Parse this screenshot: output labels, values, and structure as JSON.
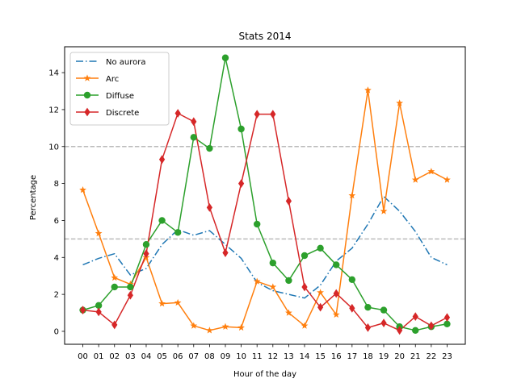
{
  "chart_data": {
    "type": "line",
    "title": "Stats 2014",
    "xlabel": "Hour of the day",
    "ylabel": "Percentage",
    "categories": [
      "00",
      "01",
      "02",
      "03",
      "04",
      "05",
      "06",
      "07",
      "08",
      "09",
      "10",
      "11",
      "12",
      "13",
      "14",
      "15",
      "16",
      "17",
      "18",
      "19",
      "20",
      "21",
      "22",
      "23"
    ],
    "ylim": [
      -0.7,
      15.4
    ],
    "yticks": [
      0,
      2,
      4,
      6,
      8,
      10,
      12,
      14
    ],
    "hlines": [
      {
        "y": 10,
        "style": "dashed",
        "color": "#bbbbbb"
      },
      {
        "y": 5,
        "style": "dashed",
        "color": "#bbbbbb"
      }
    ],
    "legend_position": "top-left",
    "grid": false,
    "series": [
      {
        "name": "No aurora",
        "color": "#1f77b4",
        "linestyle": "dashdot",
        "marker": "none",
        "values": [
          3.6,
          3.95,
          4.2,
          3.05,
          3.4,
          4.7,
          5.5,
          5.2,
          5.45,
          4.7,
          3.95,
          2.65,
          2.2,
          2.0,
          1.8,
          2.5,
          3.8,
          4.5,
          5.8,
          7.3,
          6.5,
          5.4,
          4.0,
          3.6
        ]
      },
      {
        "name": "Arc",
        "color": "#ff7f0e",
        "linestyle": "solid",
        "marker": "star",
        "values": [
          7.65,
          5.3,
          2.9,
          2.55,
          4.0,
          1.5,
          1.55,
          0.3,
          0.05,
          0.25,
          0.2,
          2.7,
          2.4,
          1.0,
          0.3,
          2.1,
          0.9,
          7.35,
          13.05,
          6.5,
          12.35,
          8.2,
          8.65,
          8.2
        ]
      },
      {
        "name": "Diffuse",
        "color": "#2ca02c",
        "linestyle": "solid",
        "marker": "circle",
        "values": [
          1.15,
          1.4,
          2.4,
          2.4,
          4.7,
          6.0,
          5.35,
          10.5,
          9.9,
          14.8,
          10.95,
          5.8,
          3.7,
          2.75,
          4.1,
          4.5,
          3.6,
          2.8,
          1.3,
          1.15,
          0.25,
          0.05,
          0.25,
          0.4
        ]
      },
      {
        "name": "Discrete",
        "color": "#d62728",
        "linestyle": "solid",
        "marker": "diamond",
        "values": [
          1.15,
          1.05,
          0.35,
          1.95,
          4.2,
          9.3,
          11.8,
          11.35,
          6.7,
          4.25,
          8.0,
          11.75,
          11.75,
          7.05,
          2.4,
          1.3,
          2.05,
          1.25,
          0.2,
          0.45,
          0.05,
          0.8,
          0.3,
          0.75
        ]
      }
    ]
  }
}
